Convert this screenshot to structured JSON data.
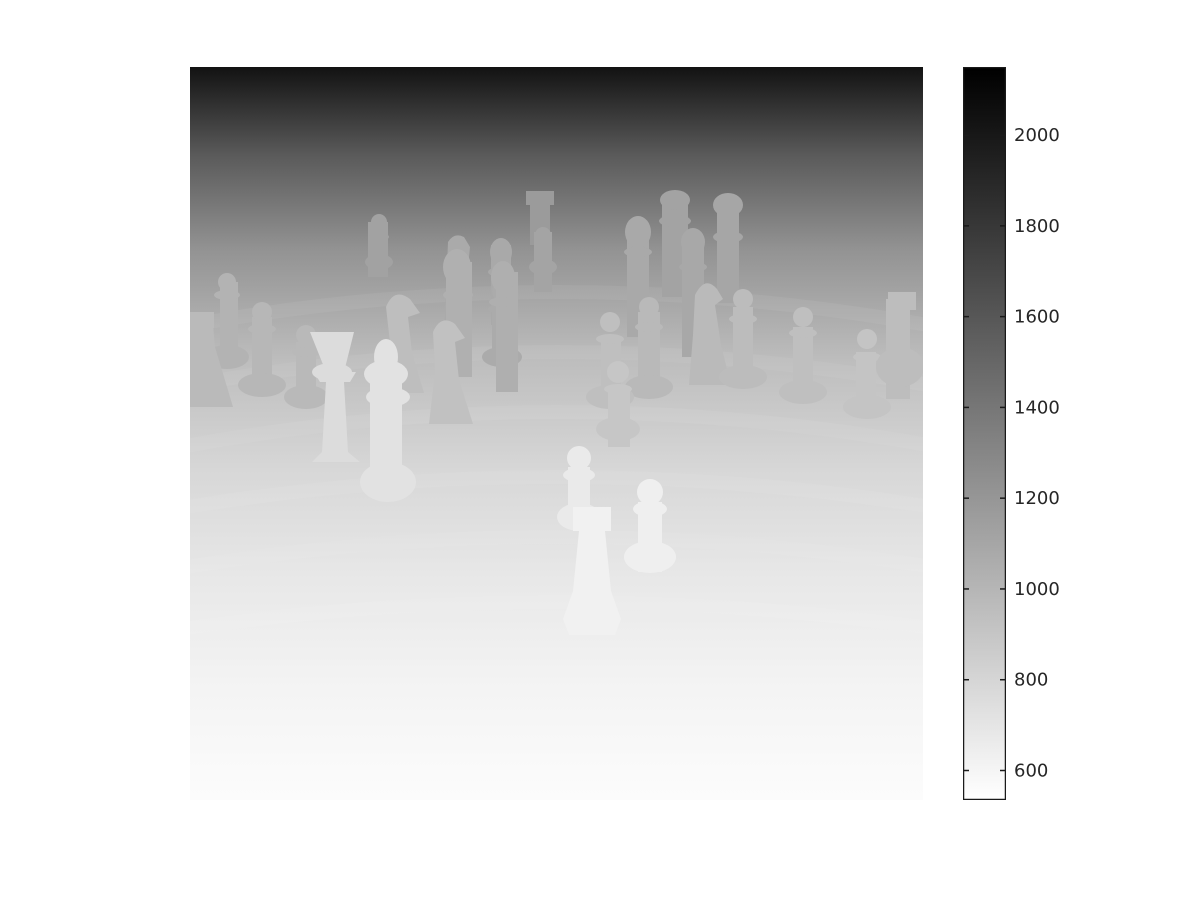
{
  "image": {
    "subject": "chess pieces on a board",
    "colormap": "gray_r"
  },
  "colorbar": {
    "min": 535,
    "max": 2150,
    "ticks": [
      600,
      800,
      1000,
      1200,
      1400,
      1600,
      1800,
      2000
    ],
    "tick_labels": [
      "600",
      "800",
      "1000",
      "1200",
      "1400",
      "1600",
      "1800",
      "2000"
    ],
    "color_low": "#ffffff",
    "color_high": "#000000"
  }
}
